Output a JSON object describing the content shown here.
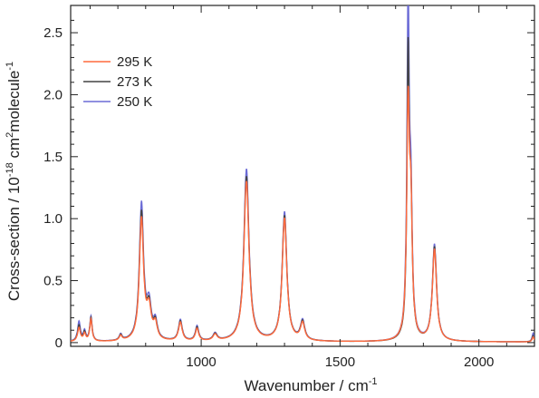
{
  "chart_data": {
    "type": "line",
    "title": "",
    "xlabel": {
      "main": "Wavenumber / cm",
      "sup": "-1"
    },
    "ylabel": {
      "parts": [
        {
          "t": "Cross-section / 10",
          "s": false
        },
        {
          "t": "-18",
          "s": true
        },
        {
          "t": " cm",
          "s": false
        },
        {
          "t": "2",
          "s": true
        },
        {
          "t": "molecule",
          "s": false
        },
        {
          "t": "-1",
          "s": true
        }
      ]
    },
    "xlim": [
      530,
      2200
    ],
    "ylim": [
      -0.03,
      2.72
    ],
    "x_ticks": [
      1000,
      1500,
      2000
    ],
    "x_tick_labels": [
      "1000",
      "1500",
      "2000"
    ],
    "y_ticks": [
      0,
      0.5,
      1.0,
      1.5,
      2.0,
      2.5
    ],
    "y_tick_labels": [
      "0",
      "0.5",
      "1.0",
      "1.5",
      "2.0",
      "2.5"
    ],
    "grid": false,
    "legend_position": "top-left",
    "series": [
      {
        "name": "295 K",
        "color": "#ff6a3d",
        "peaks": [
          [
            560,
            0.11,
            6
          ],
          [
            580,
            0.06,
            5
          ],
          [
            603,
            0.18,
            5
          ],
          [
            710,
            0.04,
            6
          ],
          [
            785,
            0.98,
            9
          ],
          [
            812,
            0.24,
            10
          ],
          [
            835,
            0.12,
            8
          ],
          [
            925,
            0.15,
            8
          ],
          [
            985,
            0.1,
            7
          ],
          [
            1050,
            0.05,
            9
          ],
          [
            1163,
            1.29,
            11
          ],
          [
            1300,
            0.99,
            10
          ],
          [
            1365,
            0.14,
            9
          ],
          [
            1745,
            1.82,
            6
          ],
          [
            1755,
            0.9,
            6
          ],
          [
            1840,
            0.74,
            9
          ],
          [
            2195,
            0.04,
            4
          ]
        ]
      },
      {
        "name": "273 K",
        "color": "#444444",
        "peaks": [
          [
            560,
            0.13,
            6
          ],
          [
            580,
            0.07,
            5
          ],
          [
            603,
            0.19,
            5
          ],
          [
            710,
            0.045,
            6
          ],
          [
            785,
            1.03,
            9
          ],
          [
            812,
            0.25,
            10
          ],
          [
            835,
            0.13,
            8
          ],
          [
            925,
            0.16,
            8
          ],
          [
            985,
            0.11,
            7
          ],
          [
            1050,
            0.055,
            9
          ],
          [
            1163,
            1.33,
            11
          ],
          [
            1300,
            1.01,
            10
          ],
          [
            1365,
            0.15,
            9
          ],
          [
            1745,
            2.2,
            5
          ],
          [
            1755,
            0.95,
            6
          ],
          [
            1840,
            0.76,
            9
          ],
          [
            2195,
            0.05,
            4
          ]
        ]
      },
      {
        "name": "250 K",
        "color": "#6b6bd6",
        "peaks": [
          [
            560,
            0.16,
            6
          ],
          [
            580,
            0.08,
            5
          ],
          [
            603,
            0.2,
            5
          ],
          [
            710,
            0.05,
            6
          ],
          [
            785,
            1.1,
            9
          ],
          [
            812,
            0.27,
            10
          ],
          [
            835,
            0.14,
            8
          ],
          [
            925,
            0.17,
            8
          ],
          [
            985,
            0.12,
            7
          ],
          [
            1050,
            0.06,
            9
          ],
          [
            1163,
            1.39,
            11
          ],
          [
            1300,
            1.04,
            10
          ],
          [
            1365,
            0.16,
            9
          ],
          [
            1745,
            2.65,
            5
          ],
          [
            1755,
            1.0,
            6
          ],
          [
            1840,
            0.78,
            9
          ],
          [
            2195,
            0.07,
            4
          ]
        ]
      }
    ]
  }
}
